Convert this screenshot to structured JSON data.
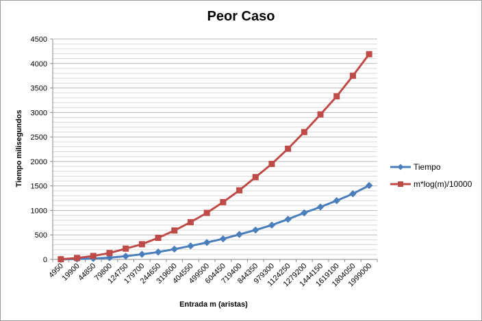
{
  "chart_data": {
    "type": "line",
    "title": "Peor Caso",
    "xlabel": "Entrada m (aristas)",
    "ylabel": "Tiempo milisegundos",
    "ylim": [
      0,
      4500
    ],
    "yticks": [
      0,
      500,
      1000,
      1500,
      2000,
      2500,
      3000,
      3500,
      4000,
      4500
    ],
    "grid": true,
    "legend_position": "right",
    "categories": [
      "4950",
      "19900",
      "44850",
      "79800",
      "124750",
      "179700",
      "244650",
      "319600",
      "404550",
      "499500",
      "604450",
      "719400",
      "844350",
      "979300",
      "1124250",
      "1279200",
      "1444150",
      "1619100",
      "1804050",
      "1999000"
    ],
    "series": [
      {
        "name": "Tiempo",
        "color": "#4a7ebb",
        "marker": "diamond",
        "values": [
          2,
          8,
          18,
          35,
          65,
          105,
          150,
          210,
          275,
          345,
          420,
          510,
          600,
          700,
          820,
          950,
          1070,
          1200,
          1340,
          1510
        ]
      },
      {
        "name": "m*log(m)/10000",
        "color": "#be4b48",
        "marker": "square",
        "values": [
          4,
          28,
          70,
          130,
          220,
          310,
          440,
          590,
          760,
          950,
          1170,
          1410,
          1680,
          1950,
          2260,
          2600,
          2960,
          3330,
          3750,
          4190
        ]
      }
    ]
  }
}
